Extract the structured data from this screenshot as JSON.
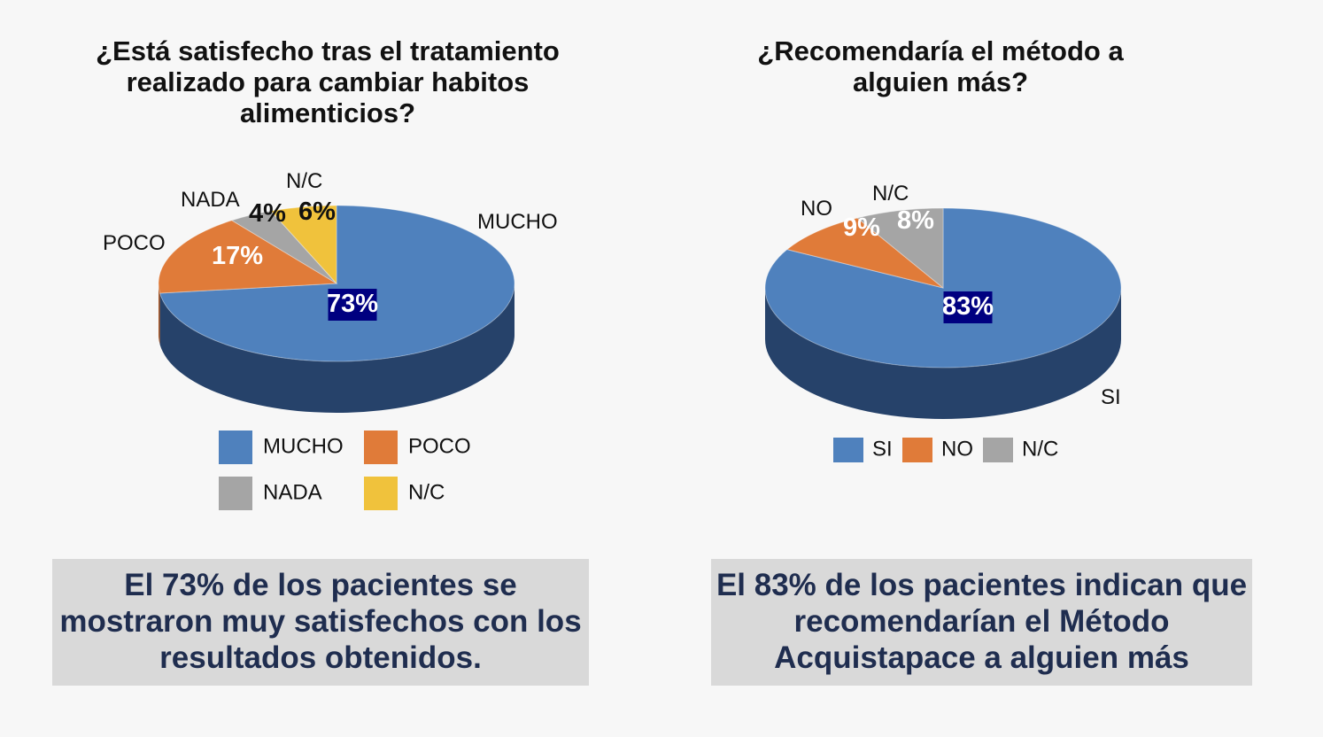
{
  "colors": {
    "blue": "#4f81bd",
    "blue_side": "#26426a",
    "orange": "#e07b39",
    "orange_side": "#a85624",
    "gray": "#a5a5a5",
    "gray_side": "#6e6e6e",
    "yellow": "#f0c23c",
    "yellow_side": "#b28a1c",
    "label_box": "#000080"
  },
  "chart_data": [
    {
      "type": "pie",
      "title": "¿Está satisfecho tras el tratamiento realizado para cambiar habitos alimenticios?",
      "slices": [
        {
          "label": "MUCHO",
          "value": 73,
          "value_label": "73%",
          "color": "#4f81bd",
          "side": "#26426a"
        },
        {
          "label": "POCO",
          "value": 17,
          "value_label": "17%",
          "color": "#e07b39",
          "side": "#a85624"
        },
        {
          "label": "NADA",
          "value": 4,
          "value_label": "4%",
          "color": "#a5a5a5",
          "side": "#6e6e6e"
        },
        {
          "label": "N/C",
          "value": 6,
          "value_label": "6%",
          "color": "#f0c23c",
          "side": "#b28a1c"
        }
      ],
      "legend": [
        "MUCHO",
        "POCO",
        "NADA",
        "N/C"
      ],
      "legend_position": "bottom",
      "summary": "El 73% de los pacientes se mostraron muy satisfechos con los resultados obtenidos."
    },
    {
      "type": "pie",
      "title": "¿Recomendaría el método a alguien más?",
      "slices": [
        {
          "label": "SI",
          "value": 83,
          "value_label": "83%",
          "color": "#4f81bd",
          "side": "#26426a"
        },
        {
          "label": "NO",
          "value": 9,
          "value_label": "9%",
          "color": "#e07b39",
          "side": "#a85624"
        },
        {
          "label": "N/C",
          "value": 8,
          "value_label": "8%",
          "color": "#a5a5a5",
          "side": "#6e6e6e"
        }
      ],
      "legend": [
        "SI",
        "NO",
        "N/C"
      ],
      "legend_position": "bottom",
      "summary": "El 83% de los pacientes indican que recomendarían el Método Acquistapace a alguien más"
    }
  ]
}
